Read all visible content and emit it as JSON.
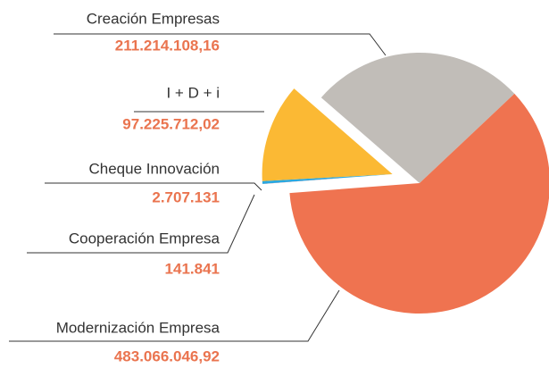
{
  "chart_data": {
    "type": "pie",
    "categories": [
      "Creación Empresas",
      "Modernización Empresa",
      "Cooperación Empresa",
      "Cheque Innovación",
      "I + D + i"
    ],
    "values": [
      211214108.16,
      483066046.92,
      141841,
      2707131,
      97225712.02
    ],
    "value_labels": [
      "211.214.108,16",
      "483.066.046,92",
      "141.841",
      "2.707.131",
      "97.225.712,02"
    ],
    "colors": [
      "#c1bdb8",
      "#ef7350",
      "#d9272e",
      "#29a8e0",
      "#fbb934"
    ],
    "explode": [
      false,
      false,
      true,
      true,
      true
    ]
  }
}
